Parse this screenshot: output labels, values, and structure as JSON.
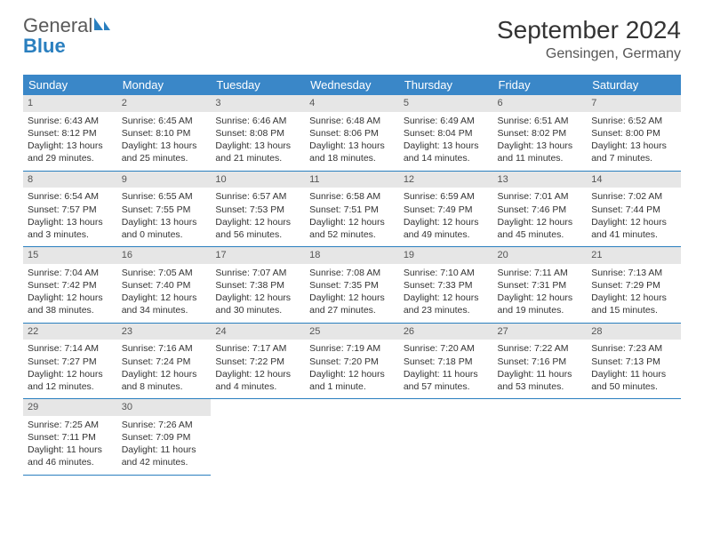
{
  "logo": {
    "word1": "General",
    "word2": "Blue"
  },
  "header": {
    "month_title": "September 2024",
    "location": "Gensingen, Germany"
  },
  "colors": {
    "header_bg": "#3a87c8",
    "header_text": "#ffffff",
    "daynum_bg": "#e6e6e6",
    "row_border": "#2a7fbf",
    "logo_gray": "#595959",
    "logo_blue": "#2a7fbf"
  },
  "fonts": {
    "title_size": 28,
    "location_size": 16,
    "th_size": 13,
    "cell_size": 10.5
  },
  "weekdays": [
    "Sunday",
    "Monday",
    "Tuesday",
    "Wednesday",
    "Thursday",
    "Friday",
    "Saturday"
  ],
  "weeks": [
    [
      {
        "n": "1",
        "sr": "Sunrise: 6:43 AM",
        "ss": "Sunset: 8:12 PM",
        "d1": "Daylight: 13 hours",
        "d2": "and 29 minutes."
      },
      {
        "n": "2",
        "sr": "Sunrise: 6:45 AM",
        "ss": "Sunset: 8:10 PM",
        "d1": "Daylight: 13 hours",
        "d2": "and 25 minutes."
      },
      {
        "n": "3",
        "sr": "Sunrise: 6:46 AM",
        "ss": "Sunset: 8:08 PM",
        "d1": "Daylight: 13 hours",
        "d2": "and 21 minutes."
      },
      {
        "n": "4",
        "sr": "Sunrise: 6:48 AM",
        "ss": "Sunset: 8:06 PM",
        "d1": "Daylight: 13 hours",
        "d2": "and 18 minutes."
      },
      {
        "n": "5",
        "sr": "Sunrise: 6:49 AM",
        "ss": "Sunset: 8:04 PM",
        "d1": "Daylight: 13 hours",
        "d2": "and 14 minutes."
      },
      {
        "n": "6",
        "sr": "Sunrise: 6:51 AM",
        "ss": "Sunset: 8:02 PM",
        "d1": "Daylight: 13 hours",
        "d2": "and 11 minutes."
      },
      {
        "n": "7",
        "sr": "Sunrise: 6:52 AM",
        "ss": "Sunset: 8:00 PM",
        "d1": "Daylight: 13 hours",
        "d2": "and 7 minutes."
      }
    ],
    [
      {
        "n": "8",
        "sr": "Sunrise: 6:54 AM",
        "ss": "Sunset: 7:57 PM",
        "d1": "Daylight: 13 hours",
        "d2": "and 3 minutes."
      },
      {
        "n": "9",
        "sr": "Sunrise: 6:55 AM",
        "ss": "Sunset: 7:55 PM",
        "d1": "Daylight: 13 hours",
        "d2": "and 0 minutes."
      },
      {
        "n": "10",
        "sr": "Sunrise: 6:57 AM",
        "ss": "Sunset: 7:53 PM",
        "d1": "Daylight: 12 hours",
        "d2": "and 56 minutes."
      },
      {
        "n": "11",
        "sr": "Sunrise: 6:58 AM",
        "ss": "Sunset: 7:51 PM",
        "d1": "Daylight: 12 hours",
        "d2": "and 52 minutes."
      },
      {
        "n": "12",
        "sr": "Sunrise: 6:59 AM",
        "ss": "Sunset: 7:49 PM",
        "d1": "Daylight: 12 hours",
        "d2": "and 49 minutes."
      },
      {
        "n": "13",
        "sr": "Sunrise: 7:01 AM",
        "ss": "Sunset: 7:46 PM",
        "d1": "Daylight: 12 hours",
        "d2": "and 45 minutes."
      },
      {
        "n": "14",
        "sr": "Sunrise: 7:02 AM",
        "ss": "Sunset: 7:44 PM",
        "d1": "Daylight: 12 hours",
        "d2": "and 41 minutes."
      }
    ],
    [
      {
        "n": "15",
        "sr": "Sunrise: 7:04 AM",
        "ss": "Sunset: 7:42 PM",
        "d1": "Daylight: 12 hours",
        "d2": "and 38 minutes."
      },
      {
        "n": "16",
        "sr": "Sunrise: 7:05 AM",
        "ss": "Sunset: 7:40 PM",
        "d1": "Daylight: 12 hours",
        "d2": "and 34 minutes."
      },
      {
        "n": "17",
        "sr": "Sunrise: 7:07 AM",
        "ss": "Sunset: 7:38 PM",
        "d1": "Daylight: 12 hours",
        "d2": "and 30 minutes."
      },
      {
        "n": "18",
        "sr": "Sunrise: 7:08 AM",
        "ss": "Sunset: 7:35 PM",
        "d1": "Daylight: 12 hours",
        "d2": "and 27 minutes."
      },
      {
        "n": "19",
        "sr": "Sunrise: 7:10 AM",
        "ss": "Sunset: 7:33 PM",
        "d1": "Daylight: 12 hours",
        "d2": "and 23 minutes."
      },
      {
        "n": "20",
        "sr": "Sunrise: 7:11 AM",
        "ss": "Sunset: 7:31 PM",
        "d1": "Daylight: 12 hours",
        "d2": "and 19 minutes."
      },
      {
        "n": "21",
        "sr": "Sunrise: 7:13 AM",
        "ss": "Sunset: 7:29 PM",
        "d1": "Daylight: 12 hours",
        "d2": "and 15 minutes."
      }
    ],
    [
      {
        "n": "22",
        "sr": "Sunrise: 7:14 AM",
        "ss": "Sunset: 7:27 PM",
        "d1": "Daylight: 12 hours",
        "d2": "and 12 minutes."
      },
      {
        "n": "23",
        "sr": "Sunrise: 7:16 AM",
        "ss": "Sunset: 7:24 PM",
        "d1": "Daylight: 12 hours",
        "d2": "and 8 minutes."
      },
      {
        "n": "24",
        "sr": "Sunrise: 7:17 AM",
        "ss": "Sunset: 7:22 PM",
        "d1": "Daylight: 12 hours",
        "d2": "and 4 minutes."
      },
      {
        "n": "25",
        "sr": "Sunrise: 7:19 AM",
        "ss": "Sunset: 7:20 PM",
        "d1": "Daylight: 12 hours",
        "d2": "and 1 minute."
      },
      {
        "n": "26",
        "sr": "Sunrise: 7:20 AM",
        "ss": "Sunset: 7:18 PM",
        "d1": "Daylight: 11 hours",
        "d2": "and 57 minutes."
      },
      {
        "n": "27",
        "sr": "Sunrise: 7:22 AM",
        "ss": "Sunset: 7:16 PM",
        "d1": "Daylight: 11 hours",
        "d2": "and 53 minutes."
      },
      {
        "n": "28",
        "sr": "Sunrise: 7:23 AM",
        "ss": "Sunset: 7:13 PM",
        "d1": "Daylight: 11 hours",
        "d2": "and 50 minutes."
      }
    ],
    [
      {
        "n": "29",
        "sr": "Sunrise: 7:25 AM",
        "ss": "Sunset: 7:11 PM",
        "d1": "Daylight: 11 hours",
        "d2": "and 46 minutes."
      },
      {
        "n": "30",
        "sr": "Sunrise: 7:26 AM",
        "ss": "Sunset: 7:09 PM",
        "d1": "Daylight: 11 hours",
        "d2": "and 42 minutes."
      },
      null,
      null,
      null,
      null,
      null
    ]
  ]
}
